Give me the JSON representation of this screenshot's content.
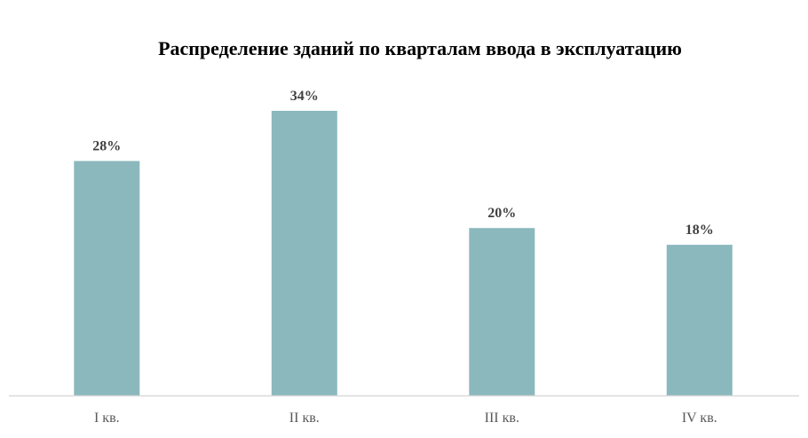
{
  "chart_data": {
    "type": "bar",
    "title": "Распределение зданий по кварталам ввода в эксплуатацию",
    "categories": [
      "I кв.",
      "II кв.",
      "III кв.",
      "IV кв."
    ],
    "values": [
      28,
      34,
      20,
      18
    ],
    "value_labels": [
      "28%",
      "34%",
      "20%",
      "18%"
    ],
    "xlabel": "",
    "ylabel": "",
    "ylim": [
      0,
      34
    ],
    "grid": false,
    "legend": "none",
    "bar_color": "#8BB8BD",
    "axis_color": "#D9D9D9"
  }
}
